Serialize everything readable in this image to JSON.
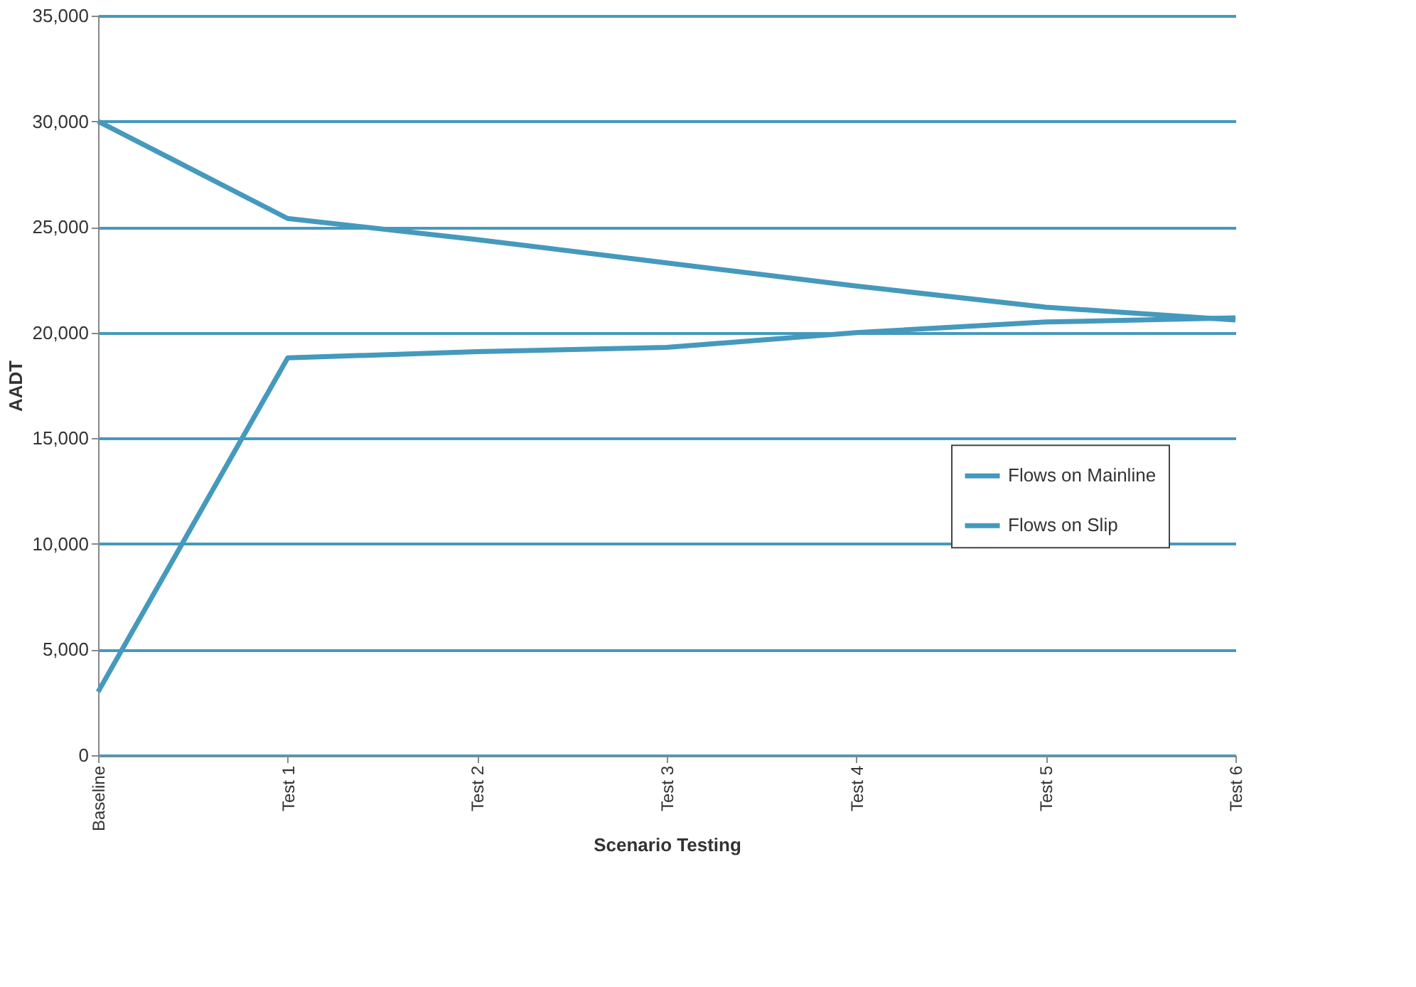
{
  "chart_data": {
    "type": "line",
    "xlabel": "Scenario Testing",
    "ylabel": "AADT",
    "categories": [
      "Baseline",
      "Test 1",
      "Test 2",
      "Test 3",
      "Test 4",
      "Test 5",
      "Test 6"
    ],
    "series": [
      {
        "name": "Flows on Mainline",
        "color": "#4599bd",
        "values": [
          30000,
          25400,
          24400,
          23300,
          22200,
          21200,
          20600
        ]
      },
      {
        "name": "Flows on Slip",
        "color": "#4599bd",
        "values": [
          3000,
          18800,
          19100,
          19300,
          20000,
          20500,
          20700
        ]
      }
    ],
    "ylim": [
      0,
      35000
    ],
    "yticks": [
      {
        "value": 0,
        "label": "0"
      },
      {
        "value": 5000,
        "label": "5,000"
      },
      {
        "value": 10000,
        "label": "10,000"
      },
      {
        "value": 15000,
        "label": "15,000"
      },
      {
        "value": 20000,
        "label": "20,000"
      },
      {
        "value": 25000,
        "label": "25,000"
      },
      {
        "value": 30000,
        "label": "30,000"
      },
      {
        "value": 35000,
        "label": "35,000"
      }
    ],
    "grid": "y",
    "legend": "right",
    "marker": "none",
    "line_style": "solid"
  }
}
